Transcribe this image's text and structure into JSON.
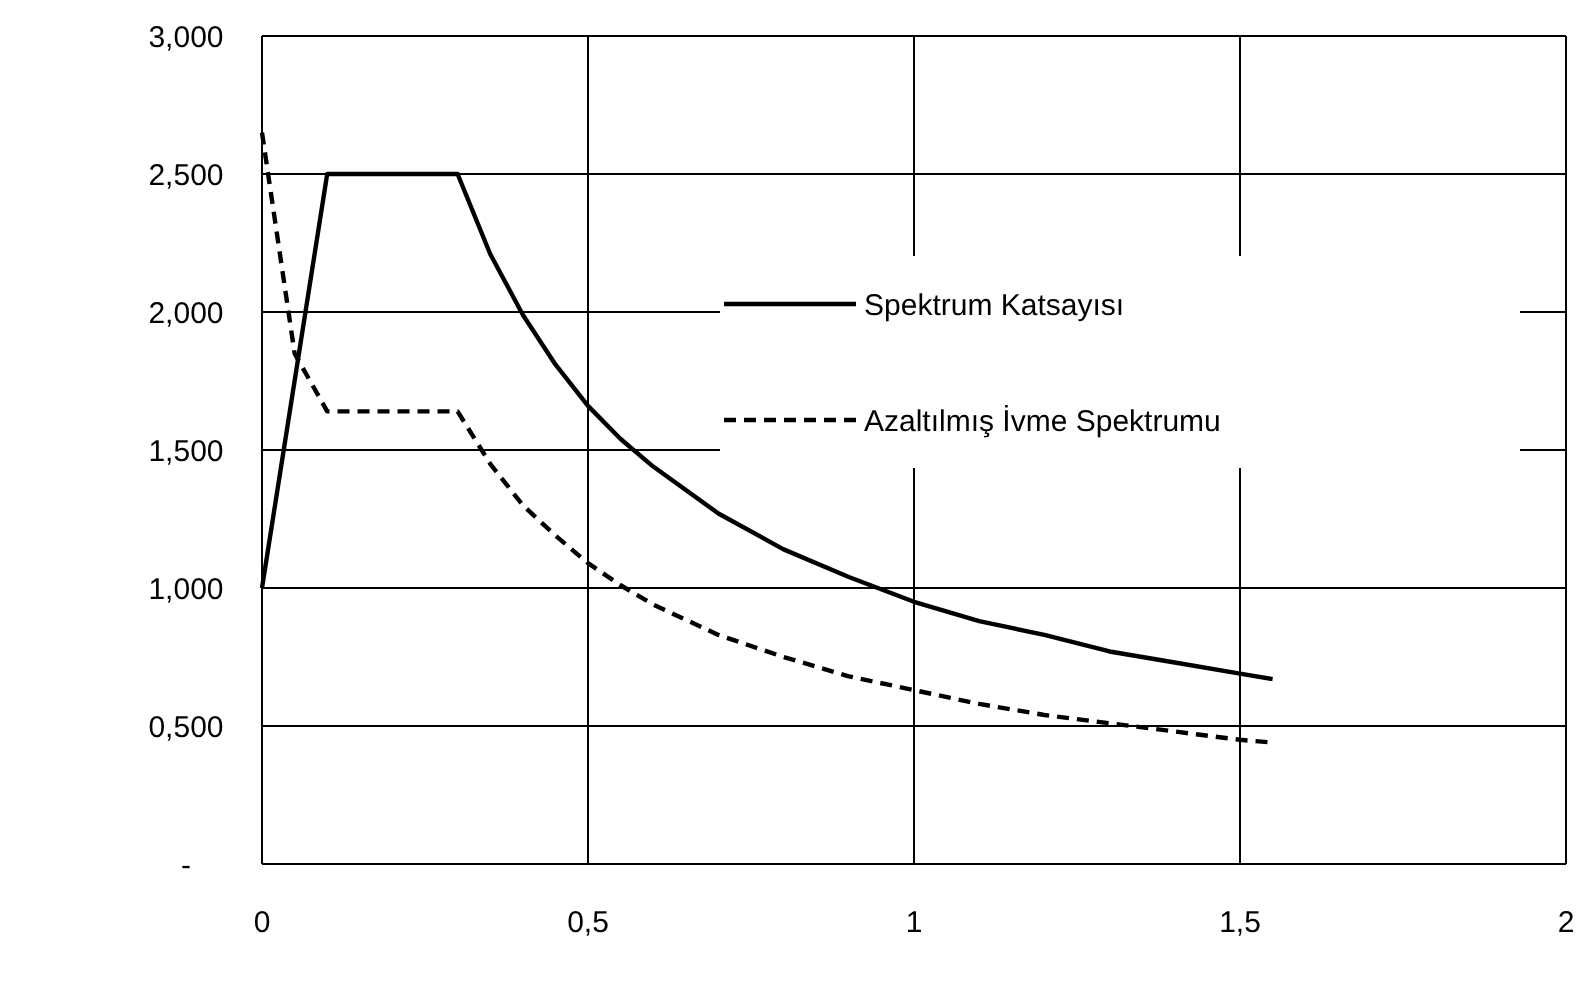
{
  "chart_data": {
    "type": "line",
    "xlim": [
      0,
      2
    ],
    "xticks": [
      0,
      {
        "value": 0.5,
        "label": "0,5"
      },
      1,
      {
        "value": 1.5,
        "label": "1,5"
      },
      2
    ],
    "ylim": [
      0,
      3
    ],
    "yticks": [
      {
        "value": 0,
        "label": "-"
      },
      {
        "value": 0.5,
        "label": "0,500"
      },
      {
        "value": 1,
        "label": "1,000"
      },
      {
        "value": 1.5,
        "label": "1,500"
      },
      {
        "value": 2,
        "label": "2,000"
      },
      {
        "value": 2.5,
        "label": "2,500"
      },
      {
        "value": 3,
        "label": "3,000"
      }
    ],
    "grid": true,
    "legend": "top right",
    "series": [
      {
        "name": "Spektrum Katsayısı",
        "color": "#000000",
        "line_style": "solid",
        "x": [
          0,
          0.1,
          0.3,
          0.35,
          0.4,
          0.45,
          0.5,
          0.55,
          0.6,
          0.7,
          0.8,
          0.9,
          1.0,
          1.1,
          1.2,
          1.3,
          1.4,
          1.5,
          1.55
        ],
        "values": [
          1.0,
          2.5,
          2.5,
          2.21,
          1.99,
          1.81,
          1.66,
          1.54,
          1.44,
          1.27,
          1.14,
          1.04,
          0.95,
          0.88,
          0.83,
          0.77,
          0.73,
          0.69,
          0.67
        ]
      },
      {
        "name": "Azaltılmış İvme Spektrumu",
        "color": "#000000",
        "line_style": "dashed",
        "x": [
          0,
          0.05,
          0.1,
          0.3,
          0.35,
          0.4,
          0.45,
          0.5,
          0.55,
          0.6,
          0.7,
          0.8,
          0.9,
          1.0,
          1.1,
          1.2,
          1.3,
          1.4,
          1.5,
          1.55
        ],
        "values": [
          2.65,
          1.85,
          1.64,
          1.64,
          1.45,
          1.3,
          1.19,
          1.09,
          1.01,
          0.94,
          0.83,
          0.75,
          0.68,
          0.63,
          0.58,
          0.54,
          0.51,
          0.48,
          0.45,
          0.44
        ]
      }
    ]
  }
}
